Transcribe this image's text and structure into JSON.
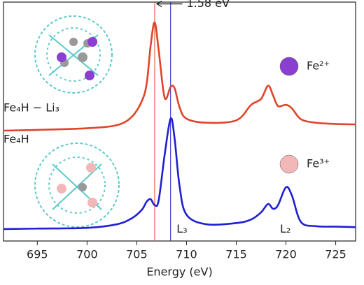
{
  "chart_data": {
    "type": "line",
    "x_label": "Energy (eV)",
    "xlim": [
      691.6,
      727.0
    ],
    "xticks": [
      695,
      700,
      705,
      710,
      715,
      720,
      725
    ],
    "ylim": [
      0,
      10
    ],
    "x": [
      691.6,
      695,
      700,
      703,
      704.5,
      705.5,
      706,
      706.4,
      706.8,
      707.2,
      707.8,
      708.4,
      708.8,
      709.3,
      710,
      712,
      715,
      716.5,
      717.5,
      718.2,
      718.7,
      719.2,
      720,
      720.6,
      721.5,
      723,
      725,
      727
    ],
    "series": [
      {
        "name": "Fe₄H − Li₃",
        "color": "#e0442a",
        "values": [
          4.62,
          4.65,
          4.72,
          4.85,
          5.2,
          5.85,
          6.6,
          8.2,
          9.15,
          8.0,
          6.0,
          6.45,
          6.4,
          5.6,
          5.12,
          4.95,
          5.05,
          5.7,
          5.95,
          6.5,
          6.1,
          5.65,
          5.7,
          5.55,
          5.1,
          4.95,
          4.9,
          4.88
        ]
      },
      {
        "name": "Fe₄H",
        "color": "#1f1fd0",
        "values": [
          0.5,
          0.52,
          0.55,
          0.7,
          0.95,
          1.3,
          1.65,
          1.75,
          1.5,
          1.7,
          3.6,
          5.12,
          4.3,
          2.3,
          1.1,
          0.7,
          0.75,
          0.9,
          1.2,
          1.55,
          1.35,
          1.5,
          2.25,
          1.9,
          0.8,
          0.62,
          0.6,
          0.58
        ]
      }
    ],
    "vlines": [
      {
        "x": 706.8,
        "color": "#e0442a"
      },
      {
        "x": 708.4,
        "color": "#1f1fd0"
      }
    ],
    "annotations": [
      {
        "text": "1.58 eV",
        "x": 710.0,
        "y": 9.75
      },
      {
        "text": "L₃",
        "x": 709.0,
        "y": 0.3
      },
      {
        "text": "L₂",
        "x": 719.4,
        "y": 0.3
      }
    ],
    "species": [
      {
        "label": "Fe²⁺",
        "color": "#8a3fd1"
      },
      {
        "label": "Fe³⁺",
        "color": "#f2b8b8"
      }
    ]
  }
}
